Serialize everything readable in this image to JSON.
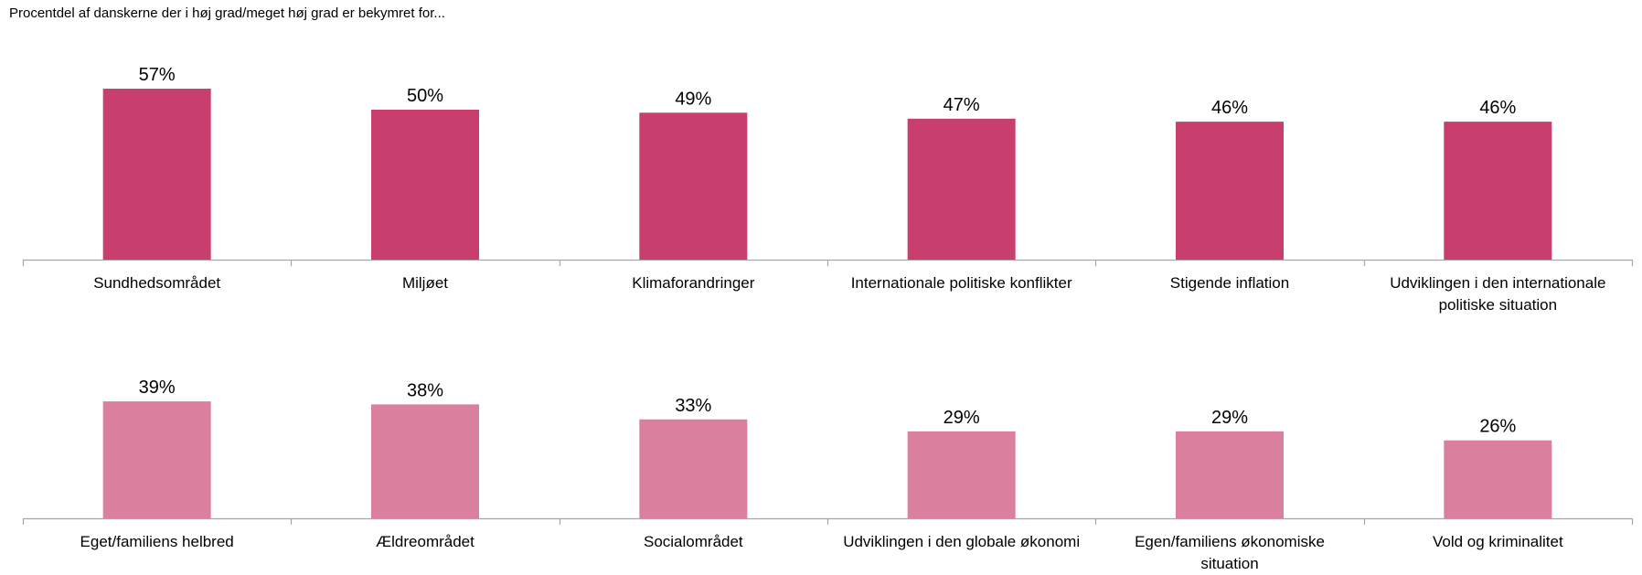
{
  "chart_data": {
    "type": "bar",
    "title": "Procentdel af danskerne der i høj grad/meget høj grad er bekymret for...",
    "xlabel": "",
    "ylabel": "",
    "ylim": [
      0,
      60
    ],
    "grid": false,
    "value_format": "%",
    "panels": [
      {
        "color": "#C83E6E",
        "categories": [
          [
            "Sundhedsområdet"
          ],
          [
            "Miljøet"
          ],
          [
            "Klimaforandringer"
          ],
          [
            "Internationale politiske konflikter"
          ],
          [
            "Stigende inflation"
          ],
          [
            "Udviklingen i den internationale",
            "politiske situation"
          ]
        ],
        "values": [
          57,
          50,
          49,
          47,
          46,
          46
        ]
      },
      {
        "color": "#DB7F9F",
        "categories": [
          [
            "Eget/familiens helbred"
          ],
          [
            "Ældreområdet"
          ],
          [
            "Socialområdet"
          ],
          [
            "Udviklingen i den globale økonomi"
          ],
          [
            "Egen/familiens økonomiske",
            "situation"
          ],
          [
            "Vold og kriminalitet"
          ]
        ],
        "values": [
          39,
          38,
          33,
          29,
          29,
          26
        ]
      }
    ]
  }
}
